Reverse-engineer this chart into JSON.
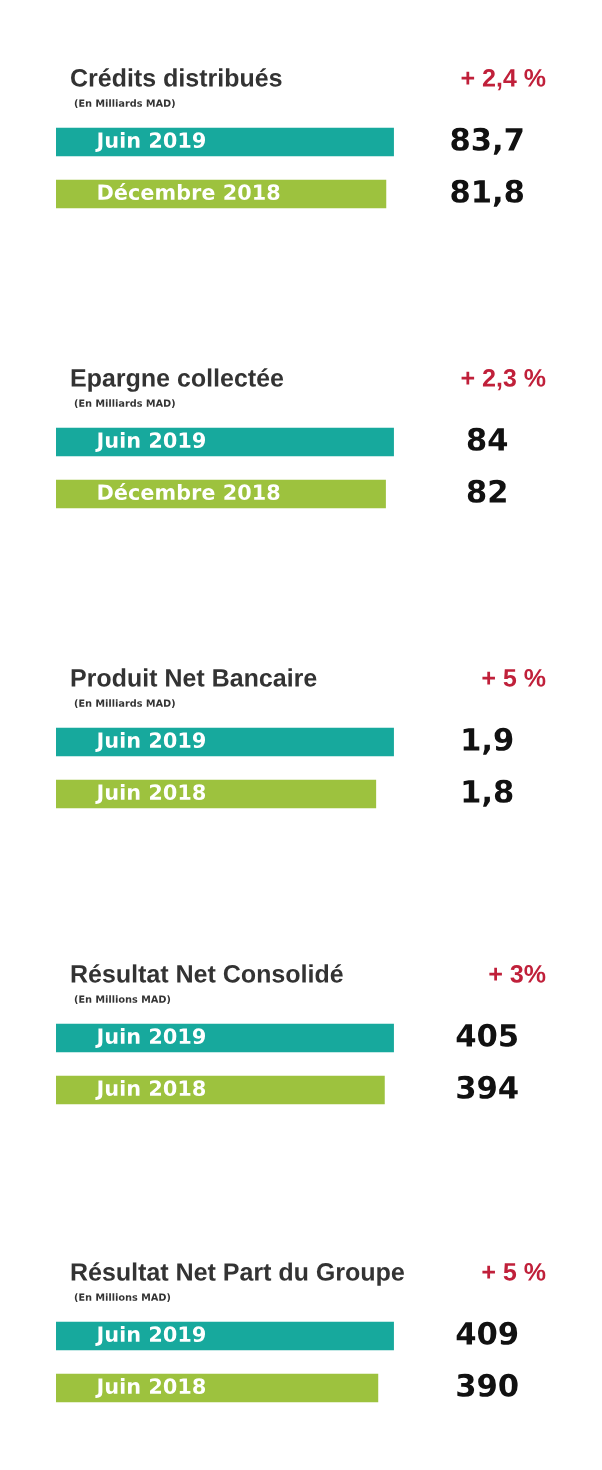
{
  "chart_data": [
    {
      "type": "bar",
      "orientation": "horizontal",
      "title": "Crédits distribués",
      "subtitle": "(En Milliards MAD)",
      "annotations": [
        "+ 2,4 %"
      ],
      "categories": [
        "Juin 2019",
        "Décembre 2018"
      ],
      "values": [
        83.7,
        81.8
      ],
      "colors": [
        "#17a99d",
        "#9dc23e"
      ],
      "value_labels": [
        "83,7",
        "81,8"
      ],
      "tick_labels": false,
      "grid": false,
      "legend": false
    },
    {
      "type": "bar",
      "orientation": "horizontal",
      "title": "Epargne collectée",
      "subtitle": "(En Milliards MAD)",
      "annotations": [
        "+ 2,3 %"
      ],
      "categories": [
        "Juin 2019",
        "Décembre 2018"
      ],
      "values": [
        84,
        82
      ],
      "colors": [
        "#17a99d",
        "#9dc23e"
      ],
      "value_labels": [
        "84",
        "82"
      ],
      "tick_labels": false,
      "grid": false,
      "legend": false
    },
    {
      "type": "bar",
      "orientation": "horizontal",
      "title": "Produit Net Bancaire",
      "subtitle": "(En Milliards MAD)",
      "annotations": [
        "+ 5 %"
      ],
      "categories": [
        "Juin 2019",
        "Juin 2018"
      ],
      "values": [
        1.9,
        1.8
      ],
      "colors": [
        "#17a99d",
        "#9dc23e"
      ],
      "value_labels": [
        "1,9",
        "1,8"
      ],
      "tick_labels": false,
      "grid": false,
      "legend": false
    },
    {
      "type": "bar",
      "orientation": "horizontal",
      "title": "Résultat Net Consolidé",
      "subtitle": "(En Millions MAD)",
      "annotations": [
        "+ 3%"
      ],
      "categories": [
        "Juin 2019",
        "Juin 2018"
      ],
      "values": [
        405,
        394
      ],
      "colors": [
        "#17a99d",
        "#9dc23e"
      ],
      "value_labels": [
        "405",
        "394"
      ],
      "tick_labels": false,
      "grid": false,
      "legend": false
    },
    {
      "type": "bar",
      "orientation": "horizontal",
      "title": "Résultat Net Part du Groupe",
      "subtitle": "(En Millions MAD)",
      "annotations": [
        "+ 5 %"
      ],
      "categories": [
        "Juin 2019",
        "Juin 2018"
      ],
      "values": [
        409,
        390
      ],
      "colors": [
        "#17a99d",
        "#9dc23e"
      ],
      "value_labels": [
        "409",
        "390"
      ],
      "tick_labels": false,
      "grid": false,
      "legend": false
    }
  ]
}
